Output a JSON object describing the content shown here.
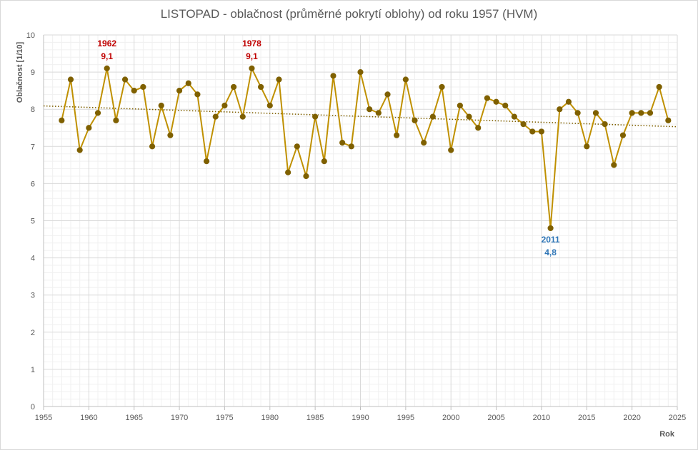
{
  "chart_data": {
    "type": "line",
    "title": "LISTOPAD - oblačnost (průměrné pokrytí oblohy) od roku 1957 (HVM)",
    "xlabel": "Rok",
    "ylabel": "Oblačnost  [1/10]",
    "xlim": [
      1955,
      2025
    ],
    "ylim": [
      0,
      10
    ],
    "x_ticks": [
      "1955",
      "1960",
      "1965",
      "1970",
      "1975",
      "1980",
      "1985",
      "1990",
      "1995",
      "2000",
      "2005",
      "2010",
      "2015",
      "2020",
      "2025"
    ],
    "y_ticks": [
      "0",
      "1",
      "2",
      "3",
      "4",
      "5",
      "6",
      "7",
      "8",
      "9",
      "10"
    ],
    "grid": "major and minor",
    "series": [
      {
        "color": "#bf9000",
        "marker_color": "#7f6000",
        "x": [
          1957,
          1958,
          1959,
          1960,
          1961,
          1962,
          1963,
          1964,
          1965,
          1966,
          1967,
          1968,
          1969,
          1970,
          1971,
          1972,
          1973,
          1974,
          1975,
          1976,
          1977,
          1978,
          1979,
          1980,
          1981,
          1982,
          1983,
          1984,
          1985,
          1986,
          1987,
          1988,
          1989,
          1990,
          1991,
          1992,
          1993,
          1994,
          1995,
          1996,
          1997,
          1998,
          1999,
          2000,
          2001,
          2002,
          2003,
          2004,
          2005,
          2006,
          2007,
          2008,
          2009,
          2010,
          2011,
          2012,
          2013,
          2014,
          2015,
          2016,
          2017,
          2018,
          2019,
          2020,
          2021,
          2022,
          2023,
          2024
        ],
        "values": [
          7.7,
          8.8,
          6.9,
          7.5,
          7.9,
          9.1,
          7.7,
          8.8,
          8.5,
          8.6,
          7.0,
          8.1,
          7.3,
          8.5,
          8.7,
          8.4,
          6.6,
          7.8,
          8.1,
          8.6,
          7.8,
          9.1,
          8.6,
          8.1,
          8.8,
          6.3,
          7.0,
          6.2,
          7.8,
          6.6,
          8.9,
          7.1,
          7.0,
          9.0,
          8.0,
          7.9,
          8.4,
          7.3,
          8.8,
          7.7,
          7.1,
          7.8,
          8.6,
          6.9,
          8.1,
          7.8,
          7.5,
          8.3,
          8.2,
          8.1,
          7.8,
          7.6,
          7.4,
          7.4,
          4.8,
          8.0,
          8.2,
          7.9,
          7.0,
          7.9,
          7.6,
          6.5,
          7.3,
          7.9,
          7.9,
          7.9,
          8.6,
          7.7
        ]
      }
    ],
    "trendline": {
      "type": "linear",
      "style": "dotted",
      "color": "#7f6000",
      "start": {
        "x": 1955,
        "y": 8.09
      },
      "end": {
        "x": 2025,
        "y": 7.53
      }
    },
    "annotations": [
      {
        "x": 1962,
        "y": 9.1,
        "year": "1962",
        "value": "9,1",
        "color": "#c00000"
      },
      {
        "x": 1978,
        "y": 9.1,
        "year": "1978",
        "value": "9,1",
        "color": "#c00000"
      },
      {
        "x": 2011,
        "y": 4.8,
        "year": "2011",
        "value": "4,8",
        "color": "#2e75b6"
      }
    ]
  }
}
